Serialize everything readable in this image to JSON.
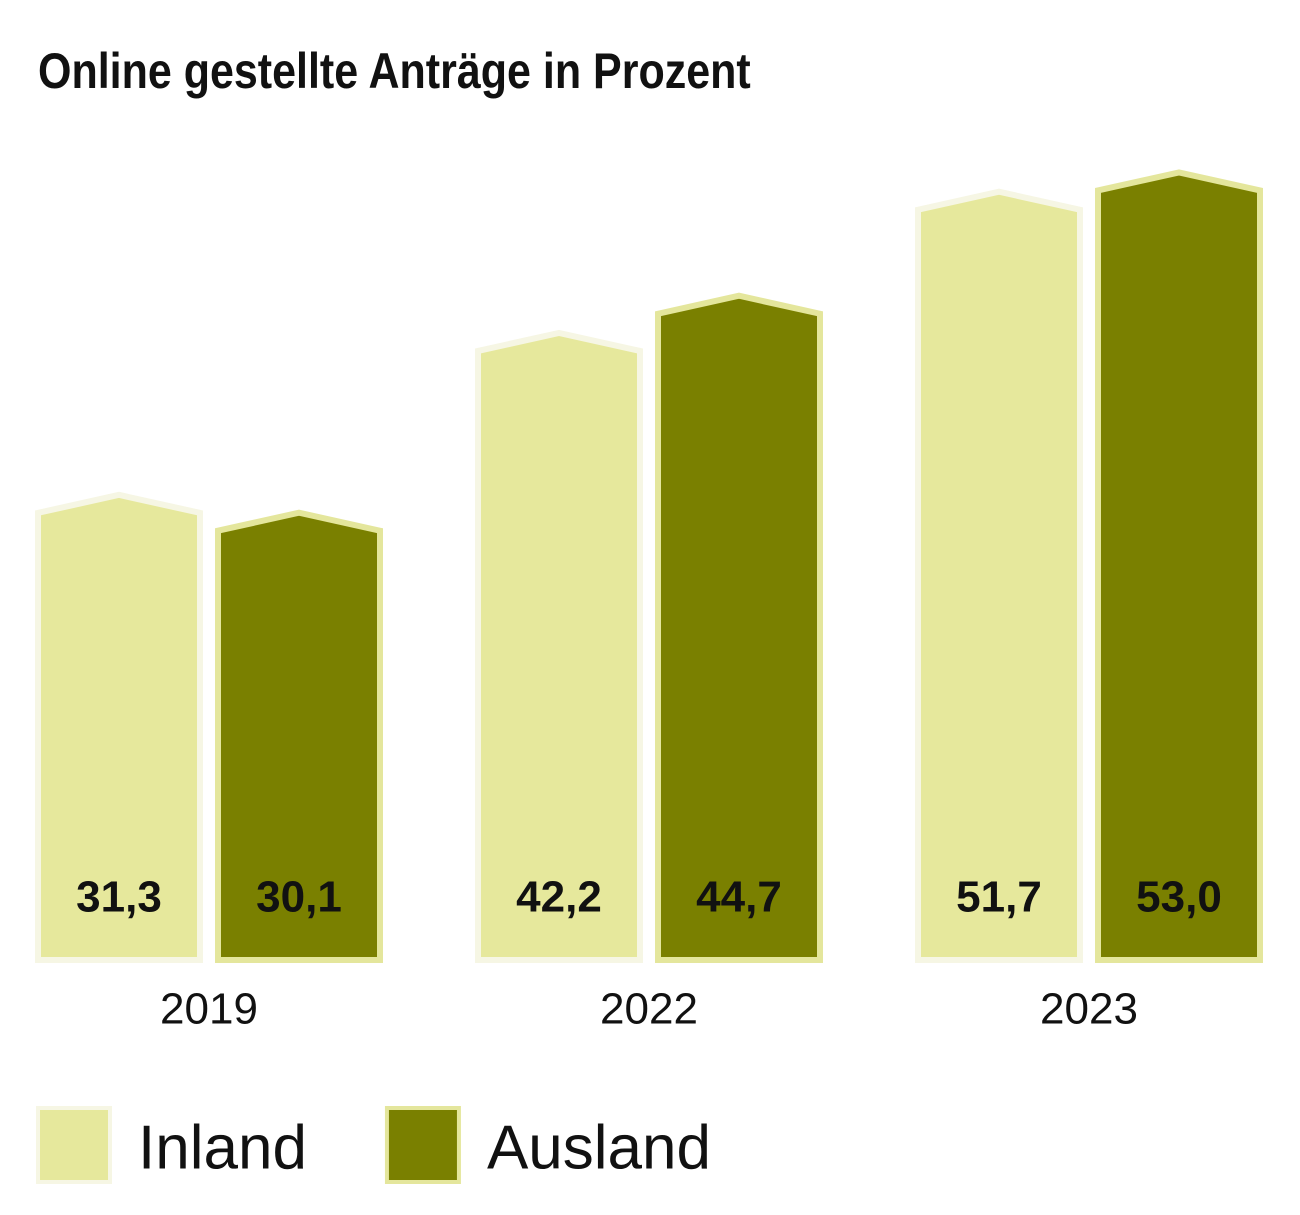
{
  "chart_data": {
    "type": "bar",
    "title": "Online gestellte Anträge in Prozent",
    "categories": [
      "2019",
      "2022",
      "2023"
    ],
    "series": [
      {
        "name": "Inland",
        "color": "#e6e89c",
        "values": [
          31.3,
          42.2,
          51.7
        ],
        "value_labels": [
          "31,3",
          "42,2",
          "51,7"
        ]
      },
      {
        "name": "Ausland",
        "color": "#7a8000",
        "values": [
          30.1,
          44.7,
          53.0
        ],
        "value_labels": [
          "30,1",
          "44,7",
          "53,0"
        ]
      }
    ]
  }
}
